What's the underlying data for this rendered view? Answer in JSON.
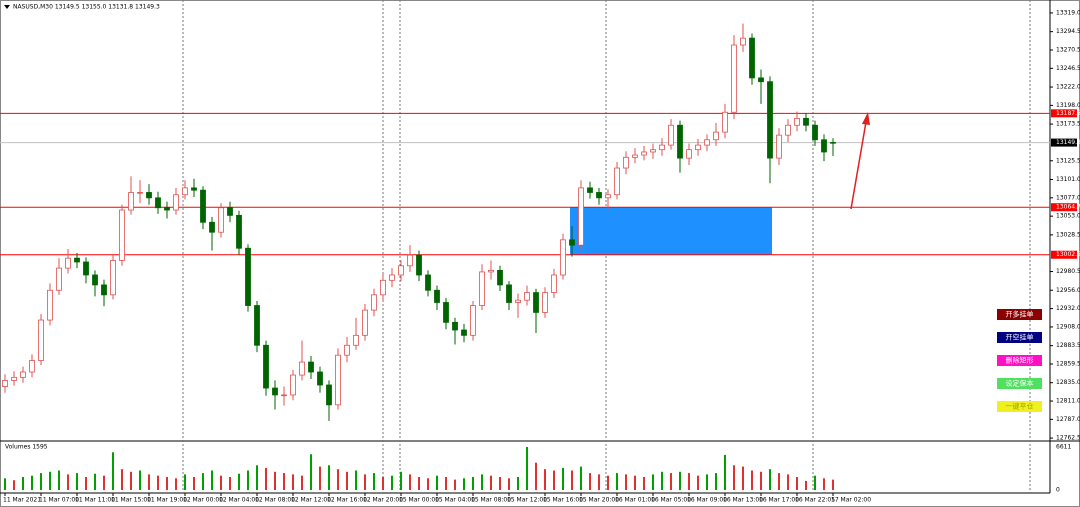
{
  "chart_data": {
    "type": "candlestick",
    "title": "NASUSD,M30  13149.5 13155.0 13131.8 13149.3",
    "xticks": [
      {
        "value": 0,
        "label": "11 Mar 2021"
      },
      {
        "value": 4,
        "label": "11 Mar 07:00"
      },
      {
        "value": 8,
        "label": "11 Mar 11:00"
      },
      {
        "value": 12,
        "label": "11 Mar 15:00"
      },
      {
        "value": 16,
        "label": "11 Mar 19:00"
      },
      {
        "value": 20,
        "label": "12 Mar 00:00"
      },
      {
        "value": 24,
        "label": "12 Mar 04:00"
      },
      {
        "value": 28,
        "label": "12 Mar 08:00"
      },
      {
        "value": 32,
        "label": "12 Mar 12:00"
      },
      {
        "value": 36,
        "label": "12 Mar 16:00"
      },
      {
        "value": 40,
        "label": "12 Mar 20:00"
      },
      {
        "value": 44,
        "label": "15 Mar 00:00"
      },
      {
        "value": 48,
        "label": "15 Mar 04:00"
      },
      {
        "value": 52,
        "label": "15 Mar 08:00"
      },
      {
        "value": 56,
        "label": "15 Mar 12:00"
      },
      {
        "value": 60,
        "label": "15 Mar 16:00"
      },
      {
        "value": 64,
        "label": "15 Mar 20:00"
      },
      {
        "value": 68,
        "label": "16 Mar 01:00"
      },
      {
        "value": 72,
        "label": "16 Mar 05:00"
      },
      {
        "value": 76,
        "label": "16 Mar 09:00"
      },
      {
        "value": 80,
        "label": "16 Mar 13:00"
      },
      {
        "value": 84,
        "label": "16 Mar 17:00"
      },
      {
        "value": 88,
        "label": "16 Mar 22:05"
      },
      {
        "value": 92,
        "label": "17 Mar 02:00"
      }
    ],
    "open": [
      12830,
      12838,
      12842,
      12849,
      12864,
      12917,
      12956,
      12985,
      12998,
      12993,
      12976,
      12963,
      12950,
      12995,
      13061,
      13084,
      13084,
      13077,
      13064,
      13061,
      13081,
      13090,
      13087,
      13045,
      13032,
      13064,
      13054,
      13011,
      12936,
      12884,
      12828,
      12819,
      12819,
      12845,
      12862,
      12849,
      12832,
      12806,
      12871,
      12884,
      12897,
      12930,
      12950,
      12969,
      12976,
      12988,
      13002,
      12976,
      12956,
      12940,
      12914,
      12904,
      12897,
      12936,
      12980,
      12982,
      12963,
      12940,
      12943,
      12953,
      12927,
      12953,
      12976,
      13022,
      13015,
      13090,
      13084,
      13077,
      13081,
      13116,
      13130,
      13133,
      13137,
      13140,
      13146,
      13172,
      13129,
      13140,
      13146,
      13153,
      13163,
      13189,
      13277,
      13286,
      13234,
      13229,
      13129,
      13159,
      13172,
      13181,
      13172,
      13153,
      13149.5
    ],
    "high": [
      12846,
      12850,
      12856,
      12872,
      12925,
      12965,
      12998,
      13010,
      13005,
      12999,
      12982,
      12970,
      13002,
      13068,
      13105,
      13100,
      13095,
      13085,
      13072,
      13090,
      13100,
      13102,
      13092,
      13052,
      13070,
      13072,
      13060,
      13016,
      12942,
      12890,
      12838,
      12830,
      12852,
      12890,
      12870,
      12856,
      12838,
      12880,
      12895,
      12920,
      12938,
      12958,
      12978,
      12985,
      12995,
      13015,
      13008,
      12982,
      12962,
      12946,
      12920,
      12912,
      12942,
      12990,
      12995,
      12988,
      12968,
      12952,
      12962,
      12958,
      12960,
      12984,
      13030,
      13040,
      13100,
      13098,
      13090,
      13088,
      13124,
      13138,
      13142,
      13145,
      13148,
      13155,
      13180,
      13178,
      13148,
      13154,
      13160,
      13175,
      13200,
      13290,
      13305,
      13292,
      13245,
      13236,
      13168,
      13180,
      13190,
      13188,
      13178,
      13160,
      13155.0
    ],
    "low": [
      12822,
      12831,
      12835,
      12842,
      12858,
      12910,
      12950,
      12978,
      12985,
      12965,
      12948,
      12935,
      12944,
      12988,
      13055,
      13070,
      13068,
      13056,
      13050,
      13055,
      13075,
      13078,
      13036,
      13008,
      13025,
      13045,
      13002,
      12928,
      12875,
      12818,
      12800,
      12805,
      12812,
      12838,
      12840,
      12822,
      12785,
      12800,
      12862,
      12878,
      12890,
      12922,
      12942,
      12960,
      12968,
      12980,
      12968,
      12948,
      12930,
      12905,
      12885,
      12888,
      12890,
      12930,
      12970,
      12955,
      12930,
      12920,
      12936,
      12900,
      12920,
      12946,
      12970,
      13000,
      13008,
      13076,
      13068,
      13062,
      13075,
      13108,
      13122,
      13126,
      13128,
      13132,
      13140,
      13110,
      13120,
      13132,
      13138,
      13145,
      13155,
      13180,
      13268,
      13225,
      13200,
      13096,
      13120,
      13150,
      13164,
      13164,
      13145,
      13125,
      13131.8
    ],
    "close": [
      12838,
      12842,
      12849,
      12864,
      12917,
      12956,
      12985,
      12998,
      12993,
      12976,
      12963,
      12950,
      12995,
      13061,
      13084,
      13084,
      13077,
      13064,
      13061,
      13081,
      13090,
      13087,
      13045,
      13032,
      13064,
      13054,
      13011,
      12936,
      12884,
      12828,
      12819,
      12819,
      12845,
      12862,
      12849,
      12832,
      12806,
      12871,
      12884,
      12897,
      12930,
      12950,
      12969,
      12976,
      12988,
      13002,
      12976,
      12956,
      12940,
      12914,
      12904,
      12897,
      12936,
      12980,
      12982,
      12963,
      12940,
      12943,
      12953,
      12927,
      12953,
      12976,
      13022,
      13015,
      13090,
      13084,
      13077,
      13081,
      13116,
      13130,
      13133,
      13137,
      13140,
      13146,
      13172,
      13129,
      13140,
      13146,
      13153,
      13163,
      13189,
      13277,
      13286,
      13234,
      13229,
      13129,
      13159,
      13172,
      13181,
      13172,
      13153,
      13137,
      13149.3
    ],
    "up_color": "#e05050",
    "down_color": "#006400",
    "ylim": [
      12760,
      13332
    ],
    "yticks": [
      {
        "value": 13319.0,
        "label": "13319.0"
      },
      13294.5,
      13270.5,
      13246.5,
      {
        "value": 13222.0,
        "label": "13222.0"
      },
      {
        "value": 13198.0,
        "label": "13198.0"
      },
      13173.5,
      13125.5,
      {
        "value": 13101.0,
        "label": "13101.0"
      },
      {
        "value": 13077.0,
        "label": "13077.0"
      },
      {
        "value": 13053.0,
        "label": "13053.0"
      },
      13028.5,
      12980.5,
      {
        "value": 12956.0,
        "label": "12956.0"
      },
      {
        "value": 12932.0,
        "label": "12932.0"
      },
      {
        "value": 12908.0,
        "label": "12908.0"
      },
      12883.5,
      12859.5,
      {
        "value": 12835.0,
        "label": "12835.0"
      },
      {
        "value": 12811.0,
        "label": "12811.0"
      },
      {
        "value": 12787.0,
        "label": "12787.0"
      },
      12762.5
    ],
    "levels": [
      {
        "value": 13187.6,
        "label": "13187.6",
        "color": "#ff0000"
      },
      {
        "value": 13064.7,
        "label": "13064.7",
        "color": "#ff0000"
      },
      {
        "value": 13002.5,
        "label": "13002.5",
        "color": "#ff0000"
      },
      {
        "value": 13149.3,
        "label": "13149.3",
        "color": "#c0c0c0",
        "tag": "#000000"
      }
    ],
    "zone": {
      "from": 63,
      "to": 85,
      "low": 13002.5,
      "high": 13064.7,
      "color": "#1e90ff"
    },
    "volume": {
      "label": "Volumes 1595",
      "up_color": "#00a000",
      "down_color": "#e03030",
      "ylim": [
        0,
        6611
      ],
      "yticks": [
        6611,
        0
      ],
      "values": [
        1800,
        1500,
        2000,
        2200,
        2600,
        2800,
        3000,
        2400,
        2600,
        2000,
        2500,
        2200,
        5800,
        3200,
        2800,
        3000,
        2400,
        2200,
        2000,
        1800,
        2400,
        2000,
        2600,
        3000,
        2200,
        2000,
        2500,
        3000,
        3800,
        3400,
        2800,
        2600,
        2400,
        2200,
        5500,
        3600,
        3800,
        3200,
        2800,
        3000,
        2400,
        2600,
        2000,
        2200,
        2800,
        2400,
        2000,
        1800,
        2200,
        2000,
        1600,
        1800,
        2000,
        2400,
        2200,
        2000,
        1800,
        2000,
        6611,
        4200,
        3200,
        3000,
        3400,
        3000,
        3600,
        2600,
        2400,
        2200,
        2600,
        2400,
        2200,
        2000,
        2400,
        2800,
        2600,
        2800,
        2600,
        2200,
        2400,
        2600,
        5400,
        3800,
        3600,
        3000,
        2800,
        3200,
        2600,
        2400,
        2000,
        1400,
        2200,
        1800,
        1595
      ]
    }
  },
  "buttons": [
    {
      "label": "开多挂单",
      "color": "#8b0000",
      "text": "#ffffff"
    },
    {
      "label": "开空挂单",
      "color": "#000080",
      "text": "#ffffff"
    },
    {
      "label": "删除矩形",
      "color": "#ff10c0",
      "text": "#ffffff"
    },
    {
      "label": "设定保本",
      "color": "#50e060",
      "text": "#ffffff"
    },
    {
      "label": "一键平仓",
      "color": "#f0f020",
      "text": "#a0a000"
    }
  ]
}
